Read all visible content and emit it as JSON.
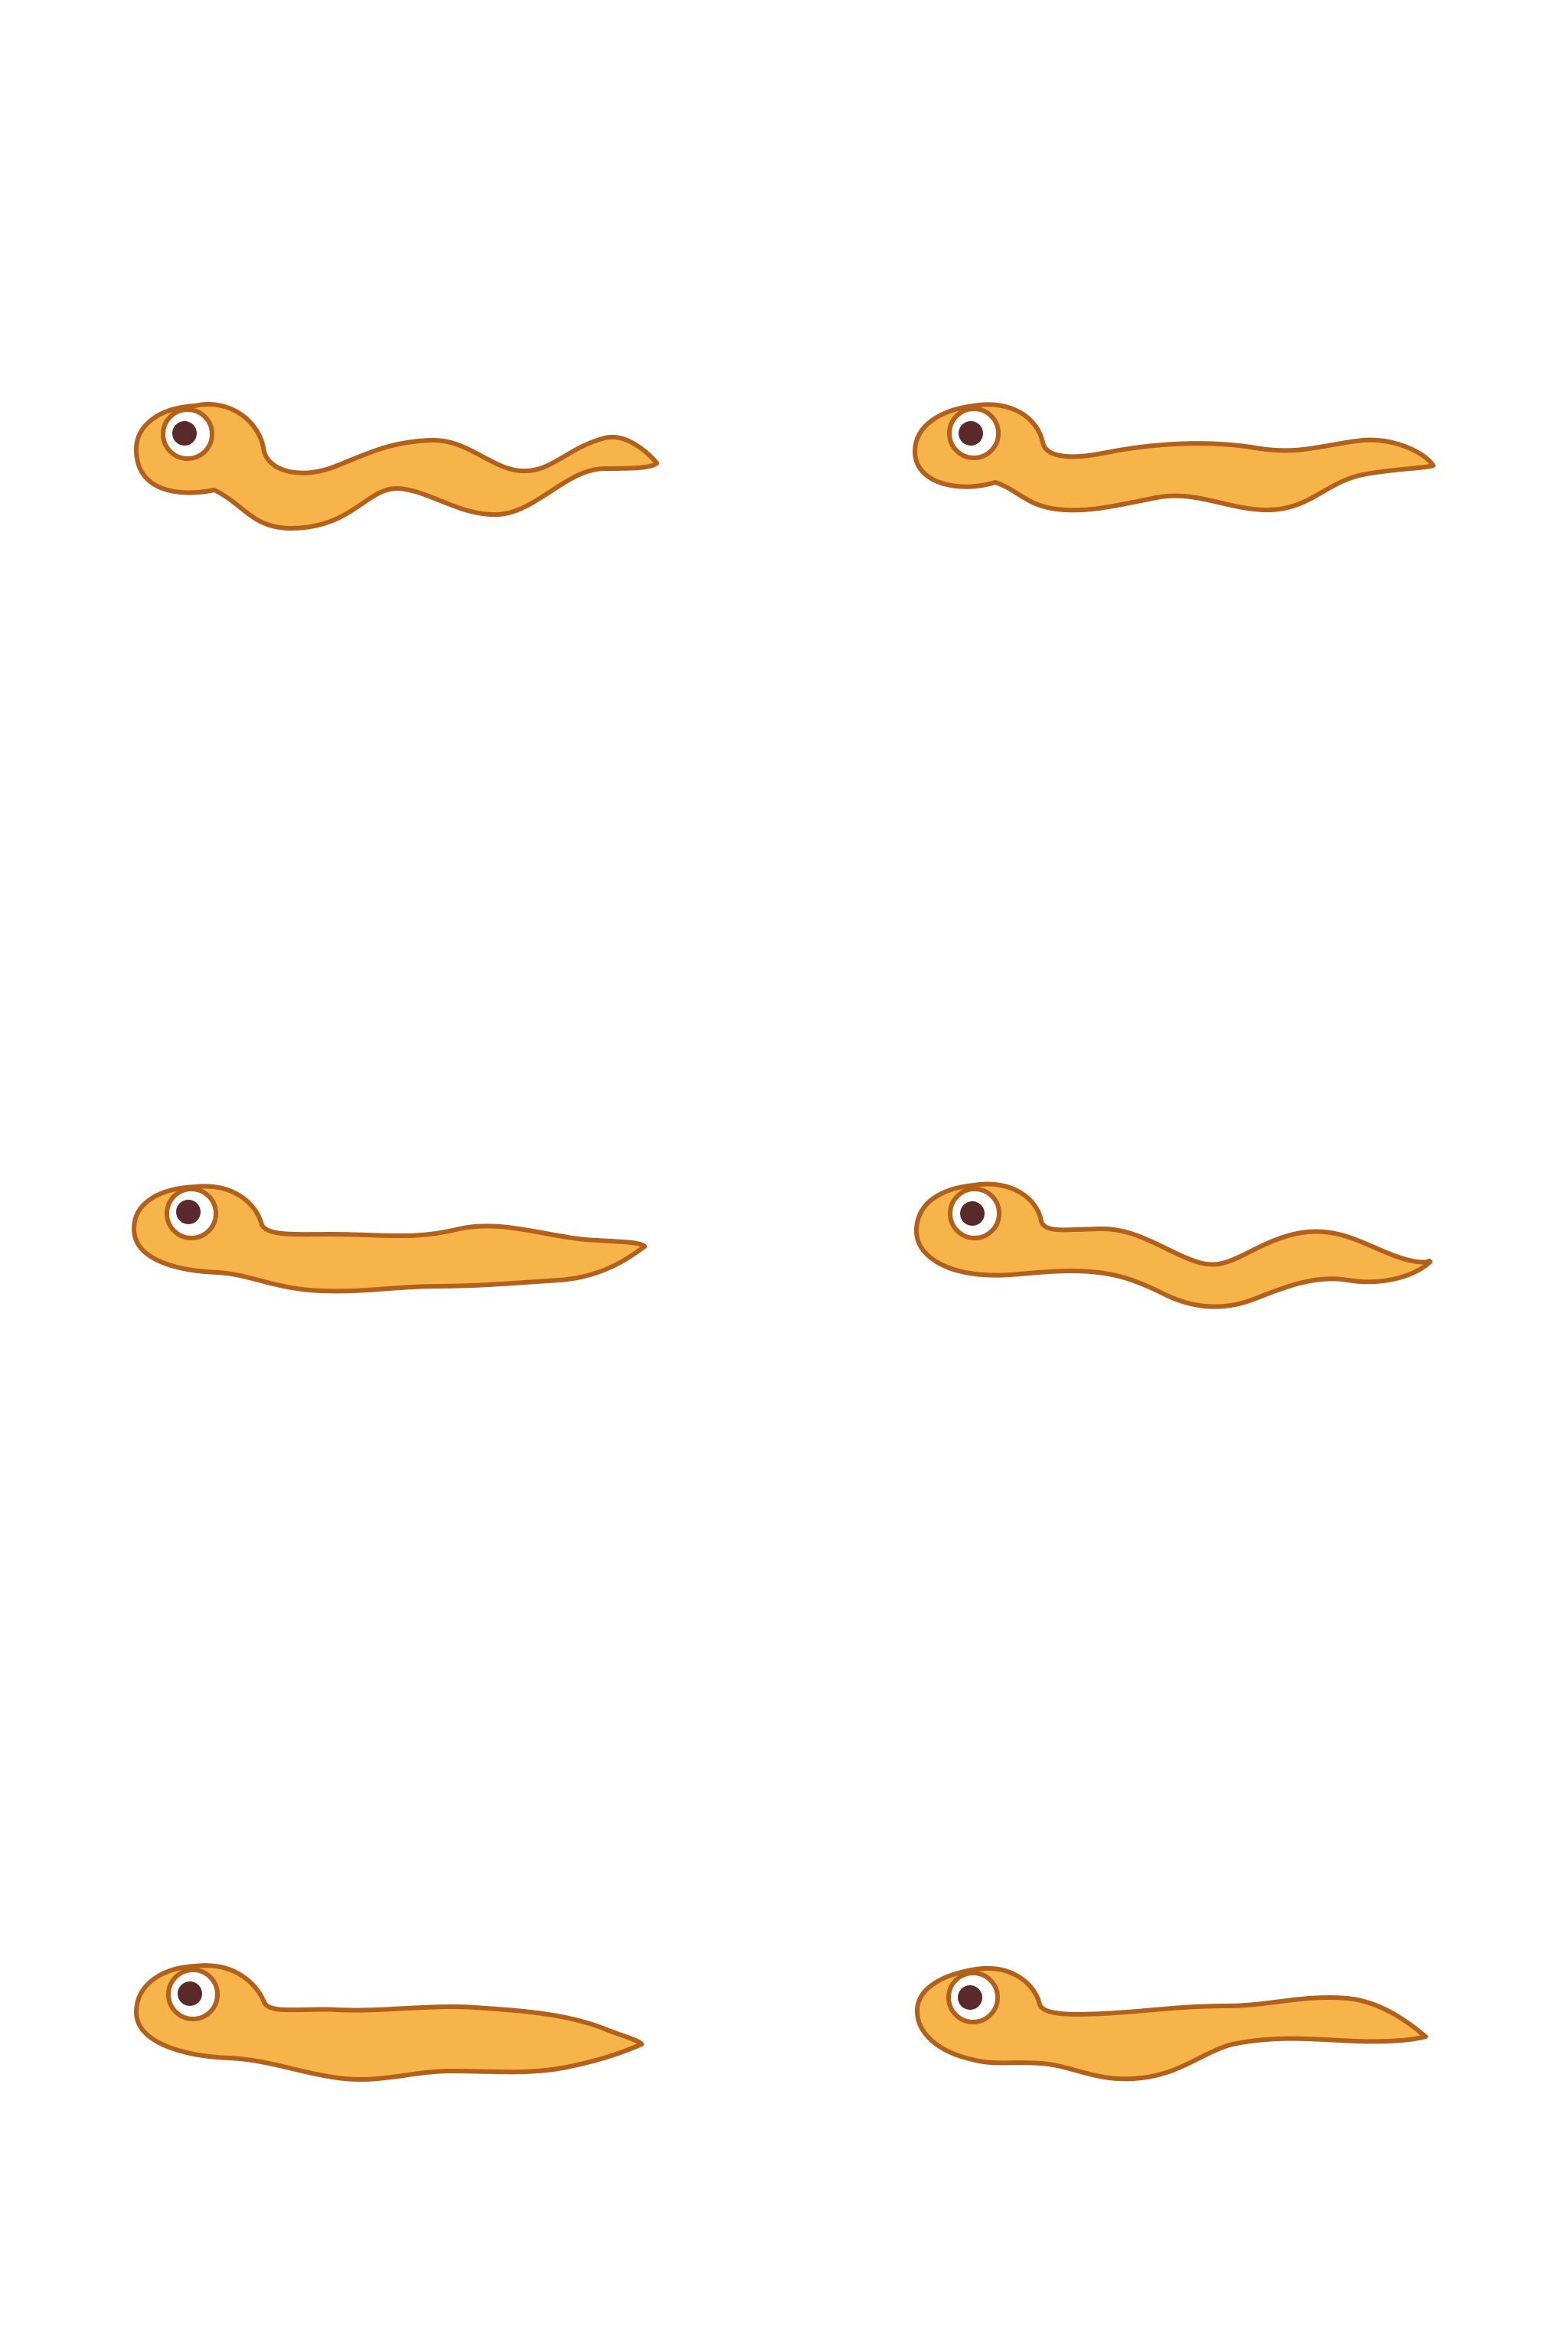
{
  "colors": {
    "background": "#ffffff",
    "body_fill": "#f6b44b",
    "outline": "#b3601a",
    "eye_white": "#ffffff",
    "pupil": "#5a2a2a"
  },
  "sprites": [
    {
      "id": "worm-1",
      "pose": "wavy",
      "icon": "worm-icon"
    },
    {
      "id": "worm-2",
      "pose": "slight-wave",
      "icon": "worm-icon"
    },
    {
      "id": "worm-3",
      "pose": "straight",
      "icon": "worm-icon"
    },
    {
      "id": "worm-4",
      "pose": "wave-down",
      "icon": "worm-icon"
    },
    {
      "id": "worm-5",
      "pose": "straight",
      "icon": "worm-icon"
    },
    {
      "id": "worm-6",
      "pose": "gentle-wave",
      "icon": "worm-icon"
    }
  ]
}
